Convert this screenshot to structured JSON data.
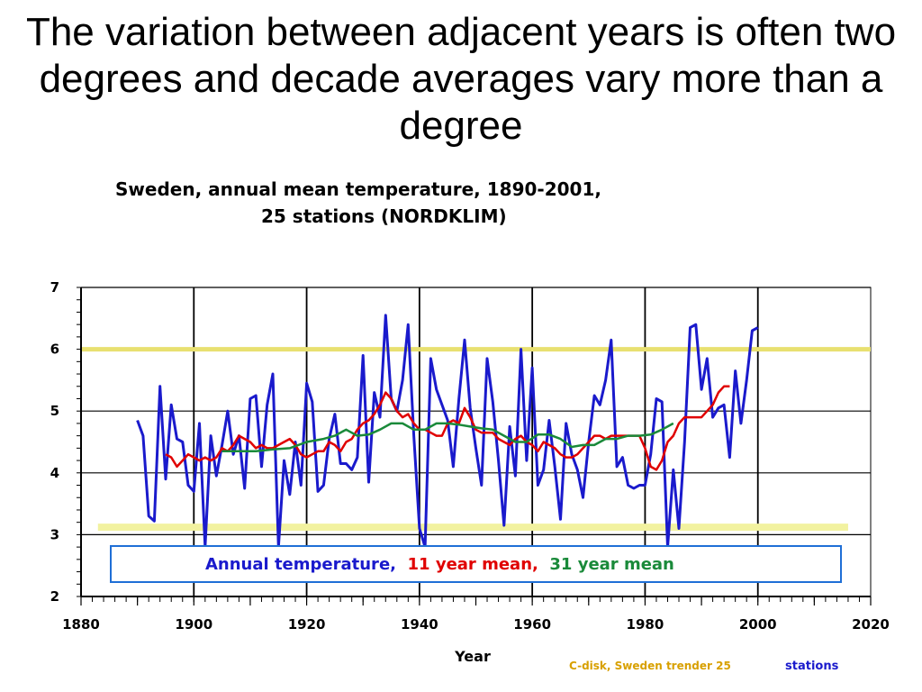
{
  "slide": {
    "title": "The variation between adjacent years is often two degrees and decade averages vary more than a degree"
  },
  "chart_data": {
    "type": "line",
    "title": "Sweden, annual mean temperature, 1890-2001,",
    "subtitle": "25 stations (NORDKLIM)",
    "xlabel": "Year",
    "ylabel": "",
    "xlim": [
      1880,
      2020
    ],
    "ylim": [
      2,
      7
    ],
    "x_ticks": [
      "1880",
      "1900",
      "1920",
      "1940",
      "1960",
      "1980",
      "2000",
      "2020"
    ],
    "y_ticks": [
      "2",
      "3",
      "4",
      "5",
      "6",
      "7"
    ],
    "grid": true,
    "reference_lines": [
      {
        "y": 6.0,
        "x_range": [
          1880,
          2020
        ],
        "color": "#e8e070"
      },
      {
        "y": 3.12,
        "x_range": [
          1883,
          2016
        ],
        "color": "#f2f2a0"
      }
    ],
    "legend": {
      "placement": "bottom",
      "entries": [
        {
          "label": "Annual temperature,",
          "color": "#1a1acc"
        },
        {
          "label": "11 year mean,",
          "color": "#e00000"
        },
        {
          "label": "31 year mean",
          "color": "#1a8a3a"
        }
      ]
    },
    "series": [
      {
        "name": "Annual temperature",
        "color": "#1a1acc",
        "x": [
          1890,
          1891,
          1892,
          1893,
          1894,
          1895,
          1896,
          1897,
          1898,
          1899,
          1900,
          1901,
          1902,
          1903,
          1904,
          1905,
          1906,
          1907,
          1908,
          1909,
          1910,
          1911,
          1912,
          1913,
          1914,
          1915,
          1916,
          1917,
          1918,
          1919,
          1920,
          1921,
          1922,
          1923,
          1924,
          1925,
          1926,
          1927,
          1928,
          1929,
          1930,
          1931,
          1932,
          1933,
          1934,
          1935,
          1936,
          1937,
          1938,
          1939,
          1940,
          1941,
          1942,
          1943,
          1944,
          1945,
          1946,
          1947,
          1948,
          1949,
          1950,
          1951,
          1952,
          1953,
          1954,
          1955,
          1956,
          1957,
          1958,
          1959,
          1960,
          1961,
          1962,
          1963,
          1964,
          1965,
          1966,
          1967,
          1968,
          1969,
          1970,
          1971,
          1972,
          1973,
          1974,
          1975,
          1976,
          1977,
          1978,
          1979,
          1980,
          1981,
          1982,
          1983,
          1984,
          1985,
          1986,
          1987,
          1988,
          1989,
          1990,
          1991,
          1992,
          1993,
          1994,
          1995,
          1996,
          1997,
          1998,
          1999,
          2000
        ],
        "y": [
          4.85,
          4.6,
          3.3,
          3.22,
          5.4,
          3.9,
          5.1,
          4.55,
          4.5,
          3.8,
          3.7,
          4.8,
          2.8,
          4.6,
          3.95,
          4.45,
          5.0,
          4.3,
          4.6,
          3.75,
          5.2,
          5.25,
          4.1,
          5.1,
          5.6,
          2.8,
          4.2,
          3.65,
          4.5,
          3.8,
          5.45,
          5.15,
          3.7,
          3.8,
          4.55,
          4.95,
          4.15,
          4.15,
          4.05,
          4.25,
          5.9,
          3.85,
          5.3,
          4.9,
          6.55,
          5.2,
          5.0,
          5.5,
          6.4,
          4.6,
          3.1,
          2.8,
          5.85,
          5.35,
          5.1,
          4.85,
          4.1,
          5.2,
          6.15,
          5.05,
          4.4,
          3.8,
          5.85,
          5.15,
          4.2,
          3.15,
          4.75,
          3.95,
          6.0,
          4.2,
          5.7,
          3.8,
          4.05,
          4.85,
          4.1,
          3.25,
          4.8,
          4.3,
          4.05,
          3.6,
          4.5,
          5.25,
          5.1,
          5.5,
          6.15,
          4.1,
          4.25,
          3.8,
          3.75,
          3.8,
          3.8,
          4.3,
          5.2,
          5.15,
          2.8,
          4.05,
          3.1,
          4.5,
          6.35,
          6.4,
          5.35,
          5.85,
          4.9,
          5.05,
          5.1,
          4.25,
          5.65,
          4.8,
          5.5,
          6.3,
          6.35
        ]
      },
      {
        "name": "11 year mean",
        "color": "#e00000",
        "x": [
          1895,
          1896,
          1897,
          1898,
          1899,
          1900,
          1901,
          1902,
          1903,
          1904,
          1905,
          1906,
          1907,
          1908,
          1909,
          1910,
          1911,
          1912,
          1913,
          1914,
          1915,
          1916,
          1917,
          1918,
          1919,
          1920,
          1921,
          1922,
          1923,
          1924,
          1925,
          1926,
          1927,
          1928,
          1929,
          1930,
          1931,
          1932,
          1933,
          1934,
          1935,
          1936,
          1937,
          1938,
          1939,
          1940,
          1941,
          1942,
          1943,
          1944,
          1945,
          1946,
          1947,
          1948,
          1949,
          1950,
          1951,
          1952,
          1953,
          1954,
          1955,
          1956,
          1957,
          1958,
          1959,
          1960,
          1961,
          1962,
          1963,
          1964,
          1965,
          1966,
          1967,
          1968,
          1969,
          1970,
          1971,
          1972,
          1973,
          1974,
          1975,
          1976,
          1977,
          1978,
          1979,
          1980,
          1981,
          1982,
          1983,
          1984,
          1985,
          1986,
          1987,
          1988,
          1989,
          1990,
          1991,
          1992,
          1993,
          1994,
          1995
        ],
        "y": [
          4.3,
          4.25,
          4.1,
          4.2,
          4.3,
          4.25,
          4.2,
          4.25,
          4.2,
          4.25,
          4.4,
          4.35,
          4.45,
          4.6,
          4.55,
          4.5,
          4.4,
          4.45,
          4.4,
          4.4,
          4.45,
          4.5,
          4.55,
          4.45,
          4.3,
          4.25,
          4.3,
          4.35,
          4.35,
          4.5,
          4.45,
          4.35,
          4.5,
          4.55,
          4.7,
          4.8,
          4.85,
          4.95,
          5.1,
          5.3,
          5.2,
          5.0,
          4.9,
          4.95,
          4.8,
          4.7,
          4.7,
          4.65,
          4.6,
          4.6,
          4.8,
          4.85,
          4.8,
          5.05,
          4.9,
          4.7,
          4.65,
          4.65,
          4.65,
          4.55,
          4.5,
          4.45,
          4.55,
          4.6,
          4.5,
          4.45,
          4.35,
          4.5,
          4.45,
          4.4,
          4.3,
          4.25,
          4.25,
          4.3,
          4.4,
          4.5,
          4.6,
          4.6,
          4.55,
          4.6,
          4.6,
          4.6,
          4.6,
          4.6,
          4.6,
          4.4,
          4.1,
          4.05,
          4.2,
          4.5,
          4.6,
          4.8,
          4.9,
          4.9,
          4.9,
          4.9,
          5.0,
          5.1,
          5.3,
          5.4,
          5.4
        ]
      },
      {
        "name": "31 year mean",
        "color": "#1a8a3a",
        "x": [
          1905,
          1908,
          1911,
          1914,
          1917,
          1920,
          1923,
          1925,
          1927,
          1929,
          1931,
          1933,
          1935,
          1937,
          1939,
          1941,
          1943,
          1945,
          1947,
          1949,
          1951,
          1953,
          1955,
          1957,
          1959,
          1961,
          1963,
          1965,
          1967,
          1969,
          1971,
          1973,
          1975,
          1977,
          1979,
          1981,
          1983,
          1985
        ],
        "y": [
          4.35,
          4.35,
          4.35,
          4.38,
          4.4,
          4.5,
          4.55,
          4.6,
          4.7,
          4.6,
          4.62,
          4.7,
          4.8,
          4.8,
          4.7,
          4.7,
          4.8,
          4.8,
          4.78,
          4.75,
          4.72,
          4.7,
          4.6,
          4.5,
          4.5,
          4.62,
          4.62,
          4.55,
          4.42,
          4.45,
          4.45,
          4.55,
          4.55,
          4.6,
          4.6,
          4.62,
          4.7,
          4.8
        ]
      }
    ]
  },
  "legend_text": {
    "annual": "Annual temperature,",
    "eleven": "11 year mean,",
    "thirtyone": "31 year mean"
  },
  "footnote": {
    "part1": "C-disk, Sweden trender 25",
    "part2": "stations"
  }
}
